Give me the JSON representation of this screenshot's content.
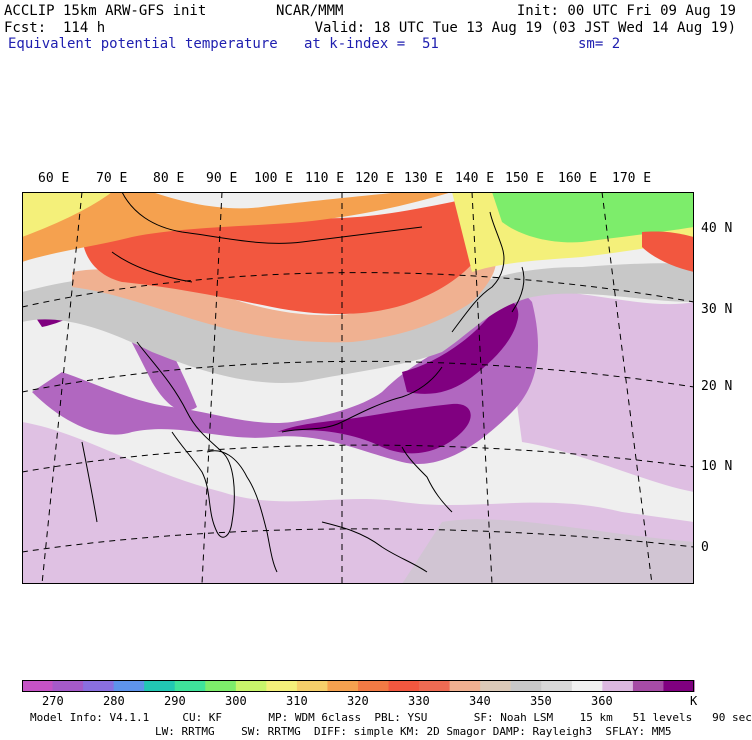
{
  "header": {
    "left1": "ACCLIP 15km ARW-GFS init",
    "center1": "NCAR/MMM",
    "right1": "Init: 00 UTC Fri 09 Aug 19",
    "left2": "Fcst:  114 h",
    "right2": "Valid: 18 UTC Tue 13 Aug 19 (03 JST Wed 14 Aug 19)",
    "field": "Equivalent potential temperature",
    "level": "at k-index =  51",
    "smooth": "sm= 2"
  },
  "map": {
    "lon_labels": [
      "60 E",
      "70 E",
      "80 E",
      "90 E",
      "100 E",
      "110 E",
      "120 E",
      "130 E",
      "140 E",
      "150 E",
      "160 E",
      "170 E"
    ],
    "lat_labels": [
      "40 N",
      "30 N",
      "20 N",
      "10 N",
      "0"
    ],
    "colors": {
      "low": "#22c7b3",
      "green": "#7ded6b",
      "yellow": "#f4f07a",
      "orange": "#f5a14f",
      "red": "#f2573f",
      "salmon": "#f0b191",
      "gray": "#c8c8c8",
      "white": "#efefef",
      "lilac": "#dcb8e0",
      "purple": "#b167c0",
      "dark_purple": "#800080"
    }
  },
  "colorbar": {
    "colors": [
      "#c553c5",
      "#a55ac9",
      "#8a6fe0",
      "#5e93ea",
      "#22c7b3",
      "#3fe39b",
      "#7ded6b",
      "#c8f56b",
      "#f4f07a",
      "#f6cf6a",
      "#f5a14f",
      "#f27a44",
      "#f2573f",
      "#ee6b53",
      "#f0b191",
      "#dccab8",
      "#c8c8c8",
      "#d8d8d8",
      "#f0f0f0",
      "#dcb8e0",
      "#a64ca6",
      "#800080"
    ],
    "labels": [
      "270",
      "280",
      "290",
      "300",
      "310",
      "320",
      "330",
      "340",
      "350",
      "360"
    ],
    "unit": "K"
  },
  "footer": {
    "line1": "Model Info: V4.1.1     CU: KF       MP: WDM 6class  PBL: YSU       SF: Noah LSM    15 km   51 levels   90 sec",
    "line2": "LW: RRTMG    SW: RRTMG  DIFF: simple KM: 2D Smagor DAMP: Rayleigh3  SFLAY: MM5"
  }
}
